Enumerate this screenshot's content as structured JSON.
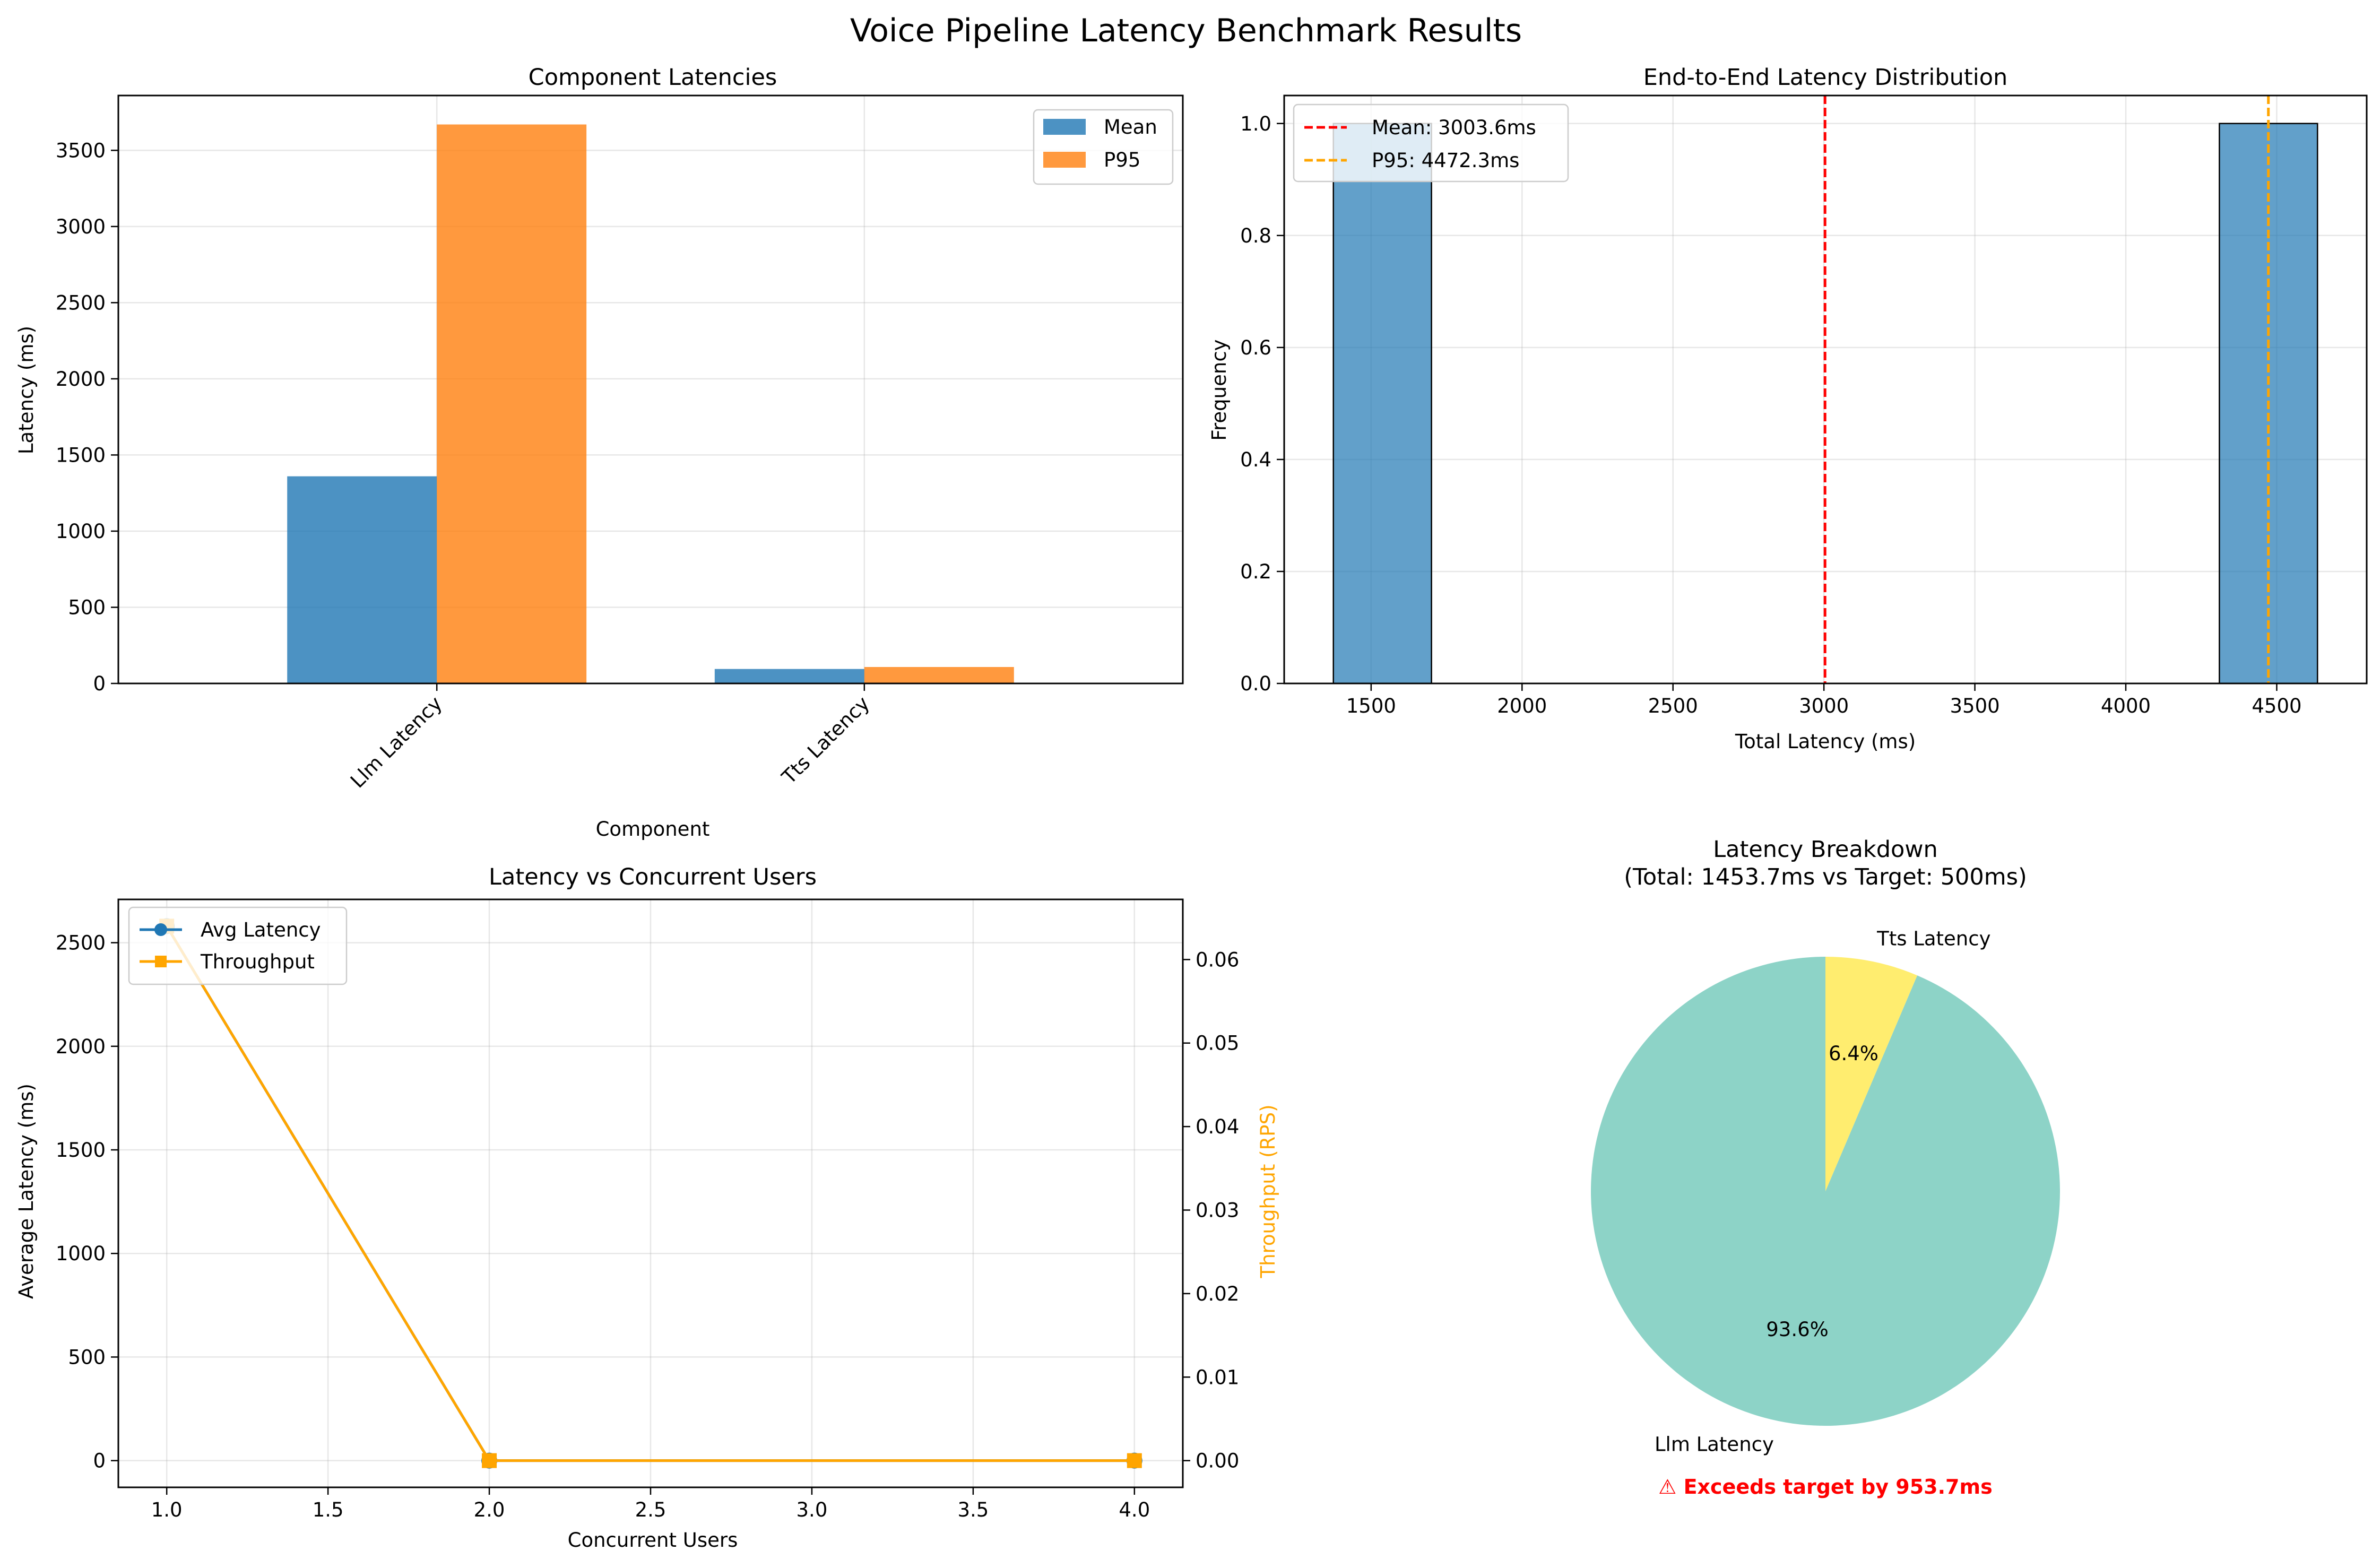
{
  "figure": {
    "title": "Voice Pipeline Latency Benchmark Results"
  },
  "colors": {
    "mean": "#1f77b4",
    "p95": "#ff7f0e",
    "hist": "#1f77b4",
    "mean_line": "#ff0000",
    "p95_line": "#ffa500",
    "throughput": "#ffa500",
    "pie_llm": "#8dd3c7",
    "pie_tts": "#ffed6f",
    "warning": "#ff0000"
  },
  "chart_data": [
    {
      "type": "bar",
      "title": "Component Latencies",
      "xlabel": "Component",
      "ylabel": "Latency (ms)",
      "categories": [
        "Llm Latency",
        "Tts Latency"
      ],
      "series": [
        {
          "name": "Mean",
          "values": [
            1360,
            95
          ]
        },
        {
          "name": "P95",
          "values": [
            3670,
            108
          ]
        }
      ],
      "ylim": [
        0,
        3860
      ],
      "yticks": [
        0,
        500,
        1000,
        1500,
        2000,
        2500,
        3000,
        3500
      ],
      "grid": true,
      "legend": "top-right"
    },
    {
      "type": "bar",
      "title": "End-to-End Latency Distribution",
      "xlabel": "Total Latency (ms)",
      "ylabel": "Frequency",
      "bins": [
        {
          "x0": 1375,
          "x1": 1700,
          "count": 1
        },
        {
          "x0": 4310,
          "x1": 4635,
          "count": 1
        }
      ],
      "vlines": [
        {
          "name": "Mean: 3003.6ms",
          "x": 3003.6
        },
        {
          "name": "P95: 4472.3ms",
          "x": 4472.3
        }
      ],
      "xlim": [
        1212,
        4798
      ],
      "ylim": [
        0,
        1.05
      ],
      "xticks": [
        1500,
        2000,
        2500,
        3000,
        3500,
        4000,
        4500
      ],
      "yticks": [
        0.0,
        0.2,
        0.4,
        0.6,
        0.8,
        1.0
      ],
      "ytick_labels": [
        "0.0",
        "0.2",
        "0.4",
        "0.6",
        "0.8",
        "1.0"
      ],
      "grid": true,
      "legend": "top-left"
    },
    {
      "type": "line",
      "title": "Latency vs Concurrent Users",
      "xlabel": "Concurrent Users",
      "ylabel": "Average Latency (ms)",
      "y2label": "Throughput (RPS)",
      "x": [
        1,
        2,
        4
      ],
      "series": [
        {
          "name": "Avg Latency",
          "axis": "left",
          "values": [
            2580,
            0,
            0
          ]
        },
        {
          "name": "Throughput",
          "axis": "right",
          "values": [
            0.064,
            0,
            0
          ]
        }
      ],
      "xlim": [
        0.85,
        4.15
      ],
      "ylim": [
        -129,
        2709
      ],
      "y2lim": [
        -0.0032,
        0.0672
      ],
      "xticks": [
        1.0,
        1.5,
        2.0,
        2.5,
        3.0,
        3.5,
        4.0
      ],
      "xtick_labels": [
        "1.0",
        "1.5",
        "2.0",
        "2.5",
        "3.0",
        "3.5",
        "4.0"
      ],
      "yticks": [
        0,
        500,
        1000,
        1500,
        2000,
        2500
      ],
      "y2ticks": [
        0.0,
        0.01,
        0.02,
        0.03,
        0.04,
        0.05,
        0.06
      ],
      "y2tick_labels": [
        "0.00",
        "0.01",
        "0.02",
        "0.03",
        "0.04",
        "0.05",
        "0.06"
      ],
      "grid": true,
      "legend": "top-left"
    },
    {
      "type": "pie",
      "title": "Latency Breakdown",
      "subtitle": "(Total: 1453.7ms vs Target: 500ms)",
      "labels": [
        "Llm Latency",
        "Tts Latency"
      ],
      "values": [
        93.6,
        6.4
      ],
      "pct_labels": [
        "93.6%",
        "6.4%"
      ],
      "start_angle": 90,
      "warning": "⚠ Exceeds target by 953.7ms"
    }
  ]
}
